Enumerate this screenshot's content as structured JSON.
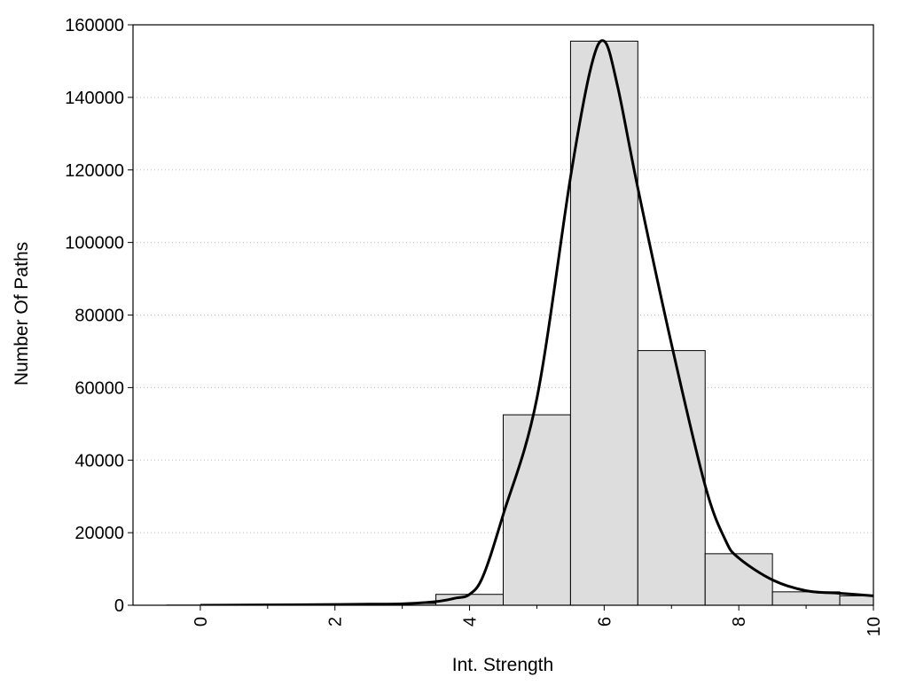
{
  "chart_data": {
    "type": "bar",
    "title": "",
    "xlabel": "Int. Strength",
    "ylabel": "Number Of Paths",
    "xlim": [
      -1,
      10
    ],
    "ylim": [
      0,
      160000
    ],
    "grid": "horizontal dotted",
    "x_ticks": [
      0,
      2,
      4,
      6,
      8,
      10
    ],
    "x_tick_labels": [
      "0",
      "2",
      "4",
      "6",
      "8",
      "10"
    ],
    "y_ticks": [
      0,
      20000,
      40000,
      60000,
      80000,
      100000,
      120000,
      140000,
      160000
    ],
    "y_tick_labels": [
      "0",
      "20000",
      "40000",
      "60000",
      "80000",
      "100000",
      "120000",
      "140000",
      "160000"
    ],
    "bar_color": "#dddddd",
    "bar_edge_color": "#000000",
    "curve_color": "#000000",
    "bars": {
      "x": [
        0,
        1,
        2,
        3,
        4,
        5,
        6,
        7,
        8,
        9,
        10
      ],
      "values": [
        50,
        120,
        250,
        500,
        3000,
        52500,
        155500,
        70200,
        14200,
        3700,
        2600
      ]
    },
    "curve": {
      "x": [
        0,
        1,
        2,
        2.5,
        3,
        3.5,
        3.8,
        4.0,
        4.2,
        4.5,
        5.0,
        5.5,
        5.8,
        6.0,
        6.2,
        6.5,
        7.0,
        7.5,
        7.8,
        8.0,
        8.5,
        9.0,
        9.5,
        10.0
      ],
      "y": [
        0,
        100,
        200,
        300,
        400,
        1000,
        2000,
        3000,
        8000,
        25000,
        57000,
        118000,
        148000,
        155500,
        143000,
        115000,
        72000,
        33000,
        18000,
        13000,
        7000,
        4000,
        3300,
        2600
      ]
    }
  }
}
